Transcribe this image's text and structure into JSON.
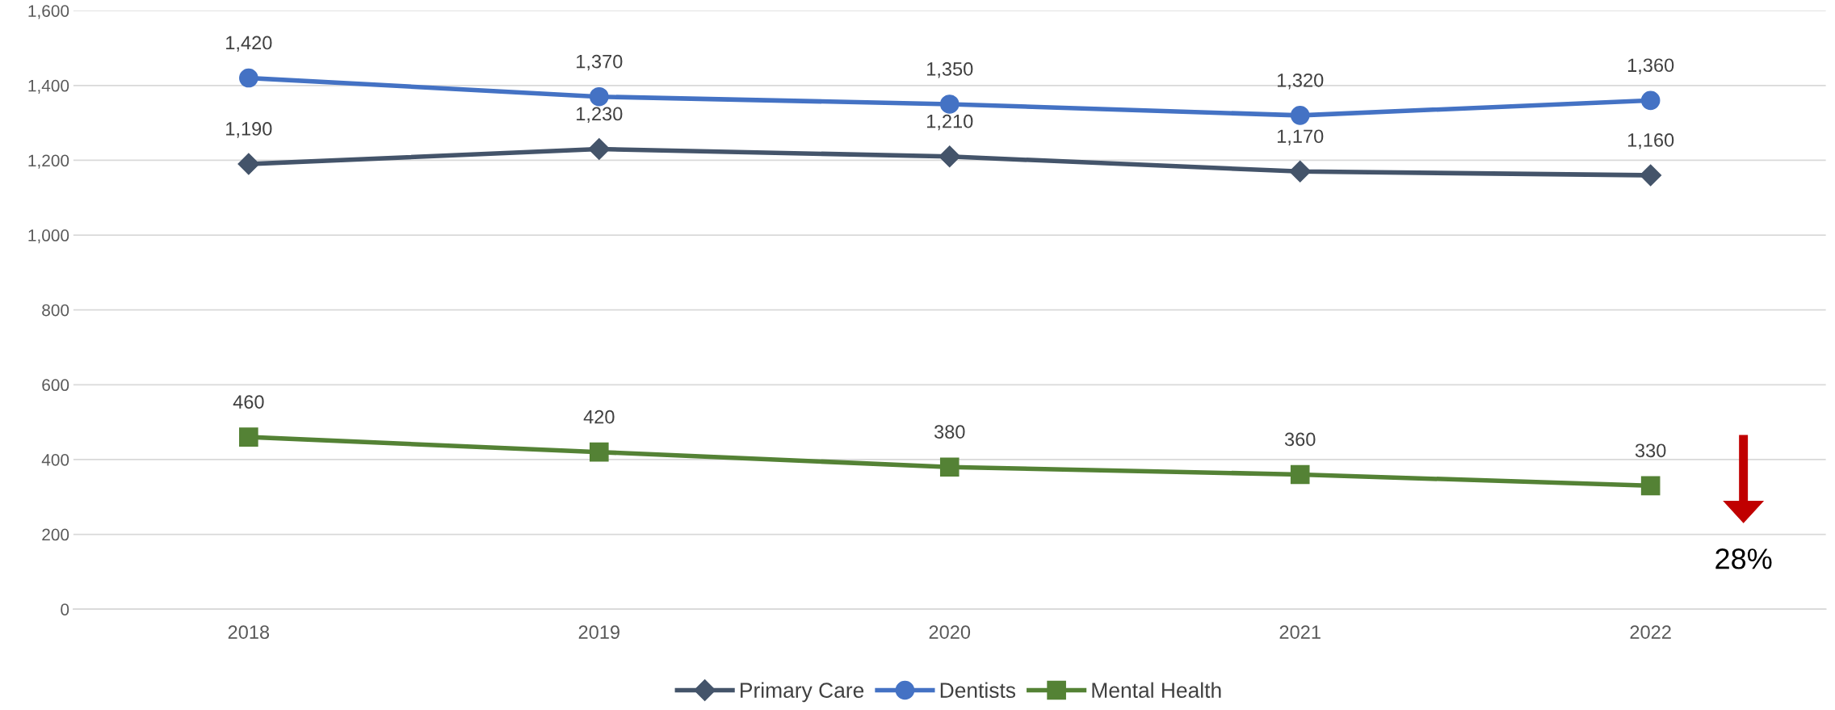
{
  "chart_data": {
    "type": "line",
    "categories": [
      "2018",
      "2019",
      "2020",
      "2021",
      "2022"
    ],
    "series": [
      {
        "name": "Primary Care",
        "color": "#44546a",
        "marker": "diamond",
        "values": [
          1190,
          1230,
          1210,
          1170,
          1160
        ],
        "value_labels": [
          "1,190",
          "1,230",
          "1,210",
          "1,170",
          "1,160"
        ]
      },
      {
        "name": "Dentists",
        "color": "#4472c4",
        "marker": "circle",
        "values": [
          1420,
          1370,
          1350,
          1320,
          1360
        ],
        "value_labels": [
          "1,420",
          "1,370",
          "1,350",
          "1,320",
          "1,360"
        ]
      },
      {
        "name": "Mental Health",
        "color": "#548235",
        "marker": "square",
        "values": [
          460,
          420,
          380,
          360,
          330
        ],
        "value_labels": [
          "460",
          "420",
          "380",
          "360",
          "330"
        ]
      }
    ],
    "ylim": [
      0,
      1600
    ],
    "yticks": [
      0,
      200,
      400,
      600,
      800,
      {
        "value": 1000,
        "label": "1,000"
      },
      {
        "value": 1200,
        "label": "1,200"
      },
      {
        "value": 1400,
        "label": "1,400"
      },
      {
        "value": 1600,
        "label": "1,600"
      }
    ],
    "grid": "y",
    "legend": "bottom",
    "line_style": "solid",
    "annotations": [
      "28%"
    ]
  }
}
